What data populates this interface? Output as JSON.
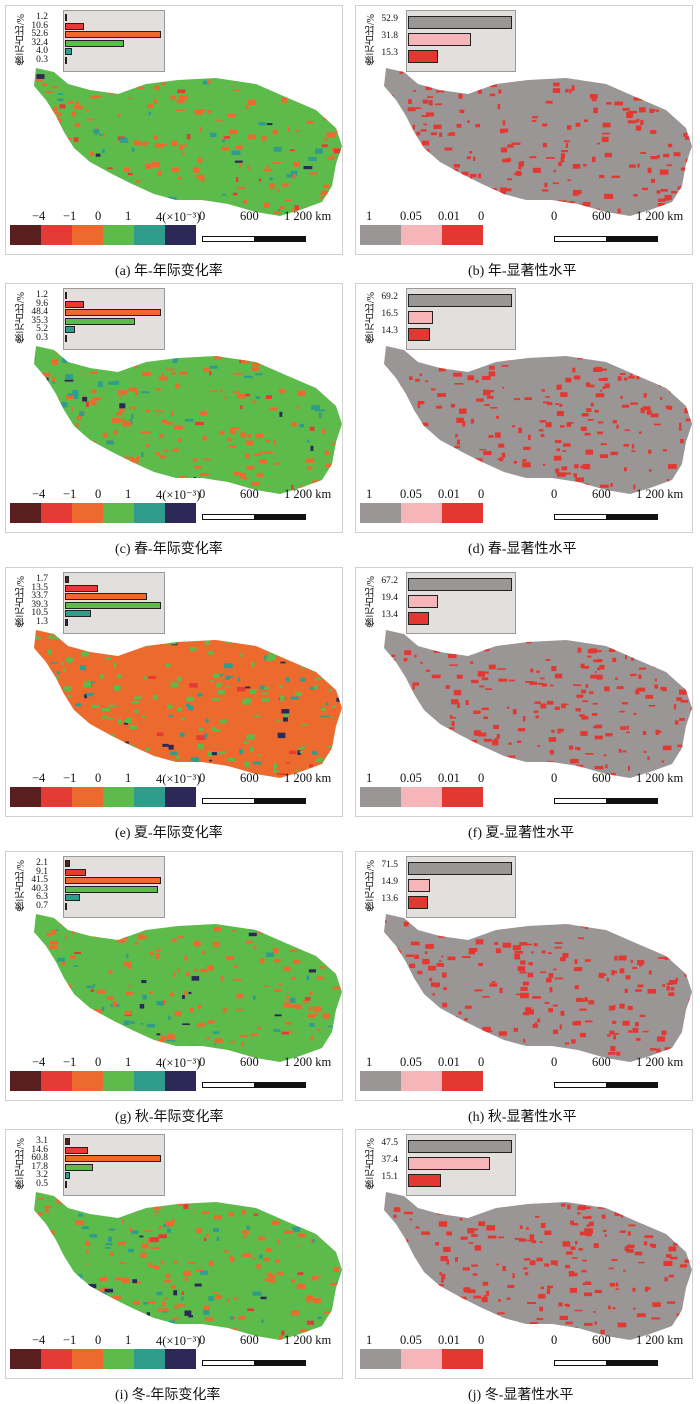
{
  "colors": {
    "rate": [
      "#5a1e1e",
      "#e53b36",
      "#ec6a2e",
      "#5dbb4c",
      "#2f9c8c",
      "#2c2858"
    ],
    "sig": [
      "#9a9696",
      "#f6b5b9",
      "#e23831"
    ],
    "inset_bg": "#e3dfdc"
  },
  "rate_legend": {
    "ticks": [
      "−4",
      "−1",
      "0",
      "1",
      "4(×10⁻³)"
    ]
  },
  "sig_legend": {
    "ticks": [
      "1",
      "0.05",
      "0.01",
      "0"
    ]
  },
  "scale": {
    "labels": [
      "0",
      "600",
      "1 200 km"
    ]
  },
  "inset_ylabel": "像元占比/%",
  "panels": [
    {
      "letter": "(a)",
      "caption": "(a) 年-年际变化率",
      "type": "rate",
      "base_color": "#5dbb4c",
      "accent_color": "#ec6a2e",
      "histogram": {
        "percentages": [
          "1.2",
          "10.6",
          "52.6",
          "32.4",
          "4.0",
          "0.3"
        ],
        "values": [
          1.2,
          10.6,
          52.6,
          32.4,
          4.0,
          0.3
        ]
      }
    },
    {
      "letter": "(b)",
      "caption": "(b) 年-显著性水平",
      "type": "sig",
      "base_color": "#9a9696",
      "accent_color": "#e23831",
      "histogram": {
        "percentages": [
          "52.9",
          "31.8",
          "15.3"
        ],
        "values": [
          52.9,
          31.8,
          15.3
        ]
      }
    },
    {
      "letter": "(c)",
      "caption": "(c) 春-年际变化率",
      "type": "rate",
      "base_color": "#5dbb4c",
      "accent_color": "#ec6a2e",
      "histogram": {
        "percentages": [
          "1.2",
          "9.6",
          "48.4",
          "35.3",
          "5.2",
          "0.3"
        ],
        "values": [
          1.2,
          9.6,
          48.4,
          35.3,
          5.2,
          0.3
        ]
      }
    },
    {
      "letter": "(d)",
      "caption": "(d) 春-显著性水平",
      "type": "sig",
      "base_color": "#9a9696",
      "accent_color": "#e23831",
      "histogram": {
        "percentages": [
          "69.2",
          "16.5",
          "14.3"
        ],
        "values": [
          69.2,
          16.5,
          14.3
        ]
      }
    },
    {
      "letter": "(e)",
      "caption": "(e) 夏-年际变化率",
      "type": "rate",
      "base_color": "#ec6a2e",
      "accent_color": "#5dbb4c",
      "histogram": {
        "percentages": [
          "1.7",
          "13.5",
          "33.7",
          "39.3",
          "10.5",
          "1.3"
        ],
        "values": [
          1.7,
          13.5,
          33.7,
          39.3,
          10.5,
          1.3
        ]
      }
    },
    {
      "letter": "(f)",
      "caption": "(f) 夏-显著性水平",
      "type": "sig",
      "base_color": "#9a9696",
      "accent_color": "#e23831",
      "histogram": {
        "percentages": [
          "67.2",
          "19.4",
          "13.4"
        ],
        "values": [
          67.2,
          19.4,
          13.4
        ]
      }
    },
    {
      "letter": "(g)",
      "caption": "(g) 秋-年际变化率",
      "type": "rate",
      "base_color": "#5dbb4c",
      "accent_color": "#ec6a2e",
      "histogram": {
        "percentages": [
          "2.1",
          "9.1",
          "41.5",
          "40.3",
          "6.3",
          "0.7"
        ],
        "values": [
          2.1,
          9.1,
          41.5,
          40.3,
          6.3,
          0.7
        ]
      }
    },
    {
      "letter": "(h)",
      "caption": "(h) 秋-显著性水平",
      "type": "sig",
      "base_color": "#9a9696",
      "accent_color": "#e23831",
      "histogram": {
        "percentages": [
          "71.5",
          "14.9",
          "13.6"
        ],
        "values": [
          71.5,
          14.9,
          13.6
        ]
      }
    },
    {
      "letter": "(i)",
      "caption": "(i) 冬-年际变化率",
      "type": "rate",
      "base_color": "#5dbb4c",
      "accent_color": "#ec6a2e",
      "histogram": {
        "percentages": [
          "3.1",
          "14.6",
          "60.8",
          "17.8",
          "3.2",
          "0.5"
        ],
        "values": [
          3.1,
          14.6,
          60.8,
          17.8,
          3.2,
          0.5
        ]
      }
    },
    {
      "letter": "(j)",
      "caption": "(j) 冬-显著性水平",
      "type": "sig",
      "base_color": "#9a9696",
      "accent_color": "#e23831",
      "histogram": {
        "percentages": [
          "47.5",
          "37.4",
          "15.1"
        ],
        "values": [
          47.5,
          37.4,
          15.1
        ]
      }
    }
  ]
}
